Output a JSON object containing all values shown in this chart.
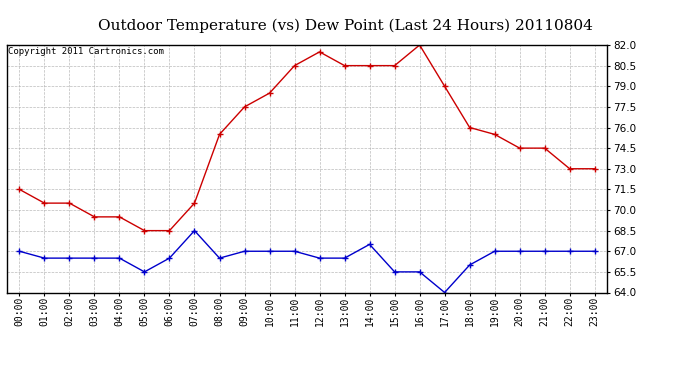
{
  "title": "Outdoor Temperature (vs) Dew Point (Last 24 Hours) 20110804",
  "copyright_text": "Copyright 2011 Cartronics.com",
  "hours": [
    "00:00",
    "01:00",
    "02:00",
    "03:00",
    "04:00",
    "05:00",
    "06:00",
    "07:00",
    "08:00",
    "09:00",
    "10:00",
    "11:00",
    "12:00",
    "13:00",
    "14:00",
    "15:00",
    "16:00",
    "17:00",
    "18:00",
    "19:00",
    "20:00",
    "21:00",
    "22:00",
    "23:00"
  ],
  "temp": [
    71.5,
    70.5,
    70.5,
    69.5,
    69.5,
    68.5,
    68.5,
    70.5,
    75.5,
    77.5,
    78.5,
    80.5,
    81.5,
    80.5,
    80.5,
    80.5,
    82.0,
    79.0,
    76.0,
    75.5,
    74.5,
    74.5,
    73.0,
    73.0
  ],
  "dewpoint": [
    67.0,
    66.5,
    66.5,
    66.5,
    66.5,
    65.5,
    66.5,
    68.5,
    66.5,
    67.0,
    67.0,
    67.0,
    66.5,
    66.5,
    67.5,
    65.5,
    65.5,
    64.0,
    66.0,
    67.0,
    67.0,
    67.0,
    67.0,
    67.0
  ],
  "temp_color": "#cc0000",
  "dew_color": "#0000cc",
  "ylim_min": 64.0,
  "ylim_max": 82.0,
  "ytick_interval": 1.5,
  "background_color": "#ffffff",
  "plot_bg_color": "#ffffff",
  "grid_color": "#aaaaaa",
  "title_fontsize": 11,
  "copyright_fontsize": 6.5
}
